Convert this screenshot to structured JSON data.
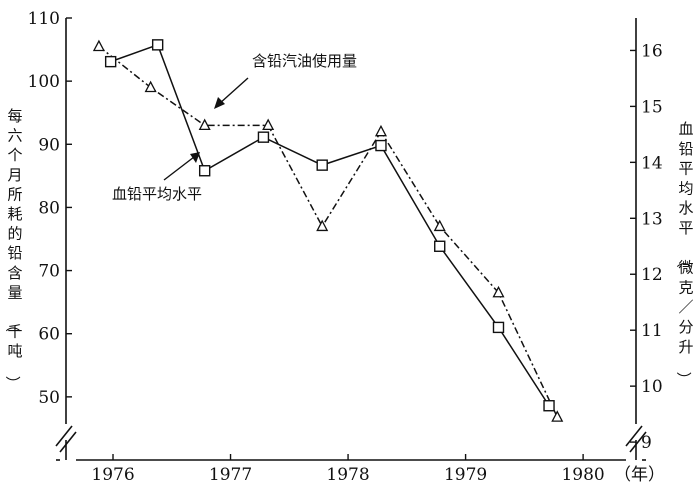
{
  "chart_data": {
    "type": "line",
    "x_axis": {
      "tick_labels": [
        "1976",
        "1977",
        "1978",
        "1979",
        "1980"
      ],
      "unit_label": "（年）",
      "range": [
        1975.6,
        1980.45
      ]
    },
    "y_left": {
      "title": "每六个月所耗的铅含量（千吨）",
      "range": [
        40,
        110
      ],
      "ticks": [
        50,
        60,
        70,
        80,
        90,
        100,
        110
      ]
    },
    "y_right": {
      "title": "血铅平均水平（微克／分升）",
      "range": [
        8.68,
        16.58
      ],
      "ticks": [
        9,
        10,
        11,
        12,
        13,
        14,
        15,
        16
      ]
    },
    "series": [
      {
        "name": "含铅汽油使用量",
        "axis": "left",
        "marker": "triangle",
        "style": "dash-dot",
        "points": [
          [
            1975.88,
            105.5
          ],
          [
            1976.32,
            99
          ],
          [
            1976.78,
            93
          ],
          [
            1977.32,
            93
          ],
          [
            1977.78,
            77
          ],
          [
            1978.28,
            92
          ],
          [
            1978.78,
            77
          ],
          [
            1979.28,
            66.5
          ],
          [
            1979.78,
            46.8
          ]
        ]
      },
      {
        "name": "血铅平均水平",
        "axis": "right",
        "marker": "square",
        "style": "solid",
        "points": [
          [
            1975.98,
            15.8
          ],
          [
            1976.38,
            16.1
          ],
          [
            1976.78,
            13.85
          ],
          [
            1977.28,
            14.45
          ],
          [
            1977.78,
            13.95
          ],
          [
            1978.28,
            14.3
          ],
          [
            1978.78,
            12.5
          ],
          [
            1979.28,
            11.05
          ],
          [
            1979.71,
            9.65
          ]
        ]
      }
    ],
    "annotations": [
      {
        "text": "含铅汽油使用量",
        "series": "含铅汽油使用量"
      },
      {
        "text": "血铅平均水平",
        "series": "血铅平均水平"
      }
    ],
    "grid": false,
    "legend": "none"
  }
}
